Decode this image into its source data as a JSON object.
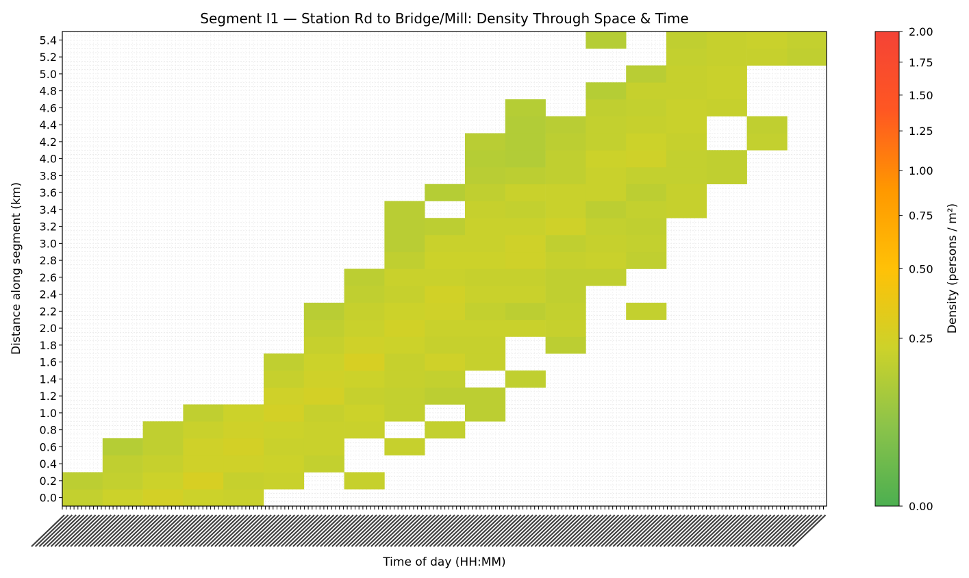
{
  "chart_data": {
    "type": "heatmap",
    "title": "Segment I1 — Station Rd to Bridge/Mill: Density Through Space & Time",
    "xlabel": "Time of day (HH:MM)",
    "ylabel": "Distance along segment (km)",
    "y_ticks": [
      "0.0",
      "0.2",
      "0.4",
      "0.6",
      "0.8",
      "1.0",
      "1.2",
      "1.4",
      "1.6",
      "1.8",
      "2.0",
      "2.2",
      "2.4",
      "2.6",
      "2.8",
      "3.0",
      "3.2",
      "3.4",
      "3.6",
      "3.8",
      "4.0",
      "4.2",
      "4.4",
      "4.6",
      "4.8",
      "5.0",
      "5.2",
      "5.4"
    ],
    "time_columns": 19,
    "value_note": "density in persons per m², column index = time bin, row = distance tick index",
    "cells": [
      [
        0,
        0,
        0.19
      ],
      [
        0,
        1,
        0.17
      ],
      [
        1,
        0,
        0.22
      ],
      [
        1,
        1,
        0.19
      ],
      [
        1,
        2,
        0.18
      ],
      [
        1,
        3,
        0.15
      ],
      [
        2,
        0,
        0.25
      ],
      [
        2,
        1,
        0.22
      ],
      [
        2,
        2,
        0.2
      ],
      [
        2,
        3,
        0.18
      ],
      [
        2,
        4,
        0.18
      ],
      [
        3,
        0,
        0.22
      ],
      [
        3,
        1,
        0.27
      ],
      [
        3,
        2,
        0.23
      ],
      [
        3,
        3,
        0.23
      ],
      [
        3,
        4,
        0.21
      ],
      [
        3,
        5,
        0.18
      ],
      [
        4,
        0,
        0.21
      ],
      [
        4,
        1,
        0.2
      ],
      [
        4,
        2,
        0.23
      ],
      [
        4,
        3,
        0.25
      ],
      [
        4,
        4,
        0.23
      ],
      [
        4,
        5,
        0.22
      ],
      [
        5,
        1,
        0.21
      ],
      [
        5,
        2,
        0.22
      ],
      [
        5,
        3,
        0.21
      ],
      [
        5,
        4,
        0.22
      ],
      [
        5,
        5,
        0.25
      ],
      [
        5,
        6,
        0.23
      ],
      [
        5,
        7,
        0.2
      ],
      [
        5,
        8,
        0.18
      ],
      [
        6,
        2,
        0.19
      ],
      [
        6,
        3,
        0.21
      ],
      [
        6,
        4,
        0.21
      ],
      [
        6,
        5,
        0.2
      ],
      [
        6,
        6,
        0.25
      ],
      [
        6,
        7,
        0.23
      ],
      [
        6,
        8,
        0.22
      ],
      [
        6,
        9,
        0.2
      ],
      [
        6,
        10,
        0.18
      ],
      [
        6,
        11,
        0.16
      ],
      [
        7,
        1,
        0.2
      ],
      [
        7,
        4,
        0.21
      ],
      [
        7,
        5,
        0.22
      ],
      [
        7,
        6,
        0.2
      ],
      [
        7,
        7,
        0.22
      ],
      [
        7,
        8,
        0.27
      ],
      [
        7,
        9,
        0.23
      ],
      [
        7,
        10,
        0.21
      ],
      [
        7,
        11,
        0.2
      ],
      [
        7,
        12,
        0.18
      ],
      [
        7,
        13,
        0.17
      ],
      [
        8,
        3,
        0.2
      ],
      [
        8,
        5,
        0.19
      ],
      [
        8,
        6,
        0.19
      ],
      [
        8,
        7,
        0.2
      ],
      [
        8,
        8,
        0.2
      ],
      [
        8,
        9,
        0.22
      ],
      [
        8,
        10,
        0.24
      ],
      [
        8,
        11,
        0.22
      ],
      [
        8,
        12,
        0.2
      ],
      [
        8,
        13,
        0.21
      ],
      [
        8,
        14,
        0.18
      ],
      [
        8,
        15,
        0.16
      ],
      [
        8,
        16,
        0.16
      ],
      [
        8,
        17,
        0.16
      ],
      [
        9,
        4,
        0.19
      ],
      [
        9,
        6,
        0.17
      ],
      [
        9,
        7,
        0.19
      ],
      [
        9,
        8,
        0.23
      ],
      [
        9,
        9,
        0.2
      ],
      [
        9,
        10,
        0.21
      ],
      [
        9,
        11,
        0.23
      ],
      [
        9,
        12,
        0.24
      ],
      [
        9,
        13,
        0.21
      ],
      [
        9,
        14,
        0.22
      ],
      [
        9,
        15,
        0.21
      ],
      [
        9,
        16,
        0.17
      ],
      [
        9,
        18,
        0.15
      ],
      [
        10,
        5,
        0.17
      ],
      [
        10,
        6,
        0.17
      ],
      [
        10,
        8,
        0.2
      ],
      [
        10,
        9,
        0.2
      ],
      [
        10,
        10,
        0.21
      ],
      [
        10,
        11,
        0.19
      ],
      [
        10,
        12,
        0.21
      ],
      [
        10,
        13,
        0.2
      ],
      [
        10,
        14,
        0.22
      ],
      [
        10,
        15,
        0.21
      ],
      [
        10,
        16,
        0.21
      ],
      [
        10,
        17,
        0.2
      ],
      [
        10,
        18,
        0.18
      ],
      [
        10,
        19,
        0.16
      ],
      [
        10,
        20,
        0.15
      ],
      [
        10,
        21,
        0.16
      ],
      [
        11,
        7,
        0.18
      ],
      [
        11,
        10,
        0.21
      ],
      [
        11,
        11,
        0.17
      ],
      [
        11,
        12,
        0.21
      ],
      [
        11,
        13,
        0.2
      ],
      [
        11,
        14,
        0.23
      ],
      [
        11,
        15,
        0.23
      ],
      [
        11,
        16,
        0.21
      ],
      [
        11,
        17,
        0.19
      ],
      [
        11,
        18,
        0.21
      ],
      [
        11,
        19,
        0.17
      ],
      [
        11,
        20,
        0.14
      ],
      [
        11,
        21,
        0.14
      ],
      [
        11,
        22,
        0.14
      ],
      [
        11,
        23,
        0.15
      ],
      [
        12,
        9,
        0.17
      ],
      [
        12,
        10,
        0.2
      ],
      [
        12,
        11,
        0.19
      ],
      [
        12,
        12,
        0.18
      ],
      [
        12,
        13,
        0.18
      ],
      [
        12,
        14,
        0.2
      ],
      [
        12,
        15,
        0.18
      ],
      [
        12,
        16,
        0.23
      ],
      [
        12,
        17,
        0.21
      ],
      [
        12,
        18,
        0.21
      ],
      [
        12,
        19,
        0.18
      ],
      [
        12,
        20,
        0.18
      ],
      [
        12,
        21,
        0.17
      ],
      [
        12,
        22,
        0.16
      ],
      [
        13,
        13,
        0.18
      ],
      [
        13,
        14,
        0.21
      ],
      [
        13,
        15,
        0.2
      ],
      [
        13,
        16,
        0.19
      ],
      [
        13,
        17,
        0.17
      ],
      [
        13,
        18,
        0.21
      ],
      [
        13,
        19,
        0.21
      ],
      [
        13,
        20,
        0.22
      ],
      [
        13,
        21,
        0.19
      ],
      [
        13,
        22,
        0.19
      ],
      [
        13,
        23,
        0.18
      ],
      [
        13,
        24,
        0.15
      ],
      [
        13,
        27,
        0.15
      ],
      [
        14,
        11,
        0.19
      ],
      [
        14,
        14,
        0.18
      ],
      [
        14,
        15,
        0.19
      ],
      [
        14,
        16,
        0.18
      ],
      [
        14,
        17,
        0.19
      ],
      [
        14,
        18,
        0.17
      ],
      [
        14,
        19,
        0.19
      ],
      [
        14,
        20,
        0.23
      ],
      [
        14,
        21,
        0.22
      ],
      [
        14,
        22,
        0.2
      ],
      [
        14,
        23,
        0.19
      ],
      [
        14,
        24,
        0.2
      ],
      [
        14,
        25,
        0.16
      ],
      [
        15,
        17,
        0.2
      ],
      [
        15,
        18,
        0.2
      ],
      [
        15,
        19,
        0.19
      ],
      [
        15,
        20,
        0.19
      ],
      [
        15,
        21,
        0.2
      ],
      [
        15,
        22,
        0.21
      ],
      [
        15,
        23,
        0.21
      ],
      [
        15,
        24,
        0.2
      ],
      [
        15,
        25,
        0.2
      ],
      [
        15,
        26,
        0.19
      ],
      [
        15,
        27,
        0.18
      ],
      [
        16,
        19,
        0.18
      ],
      [
        16,
        20,
        0.18
      ],
      [
        16,
        23,
        0.2
      ],
      [
        16,
        24,
        0.21
      ],
      [
        16,
        25,
        0.21
      ],
      [
        16,
        26,
        0.2
      ],
      [
        16,
        27,
        0.2
      ],
      [
        17,
        21,
        0.19
      ],
      [
        17,
        22,
        0.18
      ],
      [
        17,
        26,
        0.2
      ],
      [
        17,
        27,
        0.21
      ],
      [
        18,
        26,
        0.18
      ],
      [
        18,
        27,
        0.19
      ]
    ],
    "colorbar": {
      "label": "Density (persons / m²)",
      "ticks": [
        "0.00",
        "0.25",
        "0.50",
        "0.75",
        "1.00",
        "1.25",
        "1.50",
        "1.75",
        "2.00"
      ],
      "colors": [
        "#4caf50",
        "#8bc34a",
        "#cdd22a",
        "#ffc107",
        "#ff9800",
        "#ff5722",
        "#f44336"
      ]
    }
  }
}
